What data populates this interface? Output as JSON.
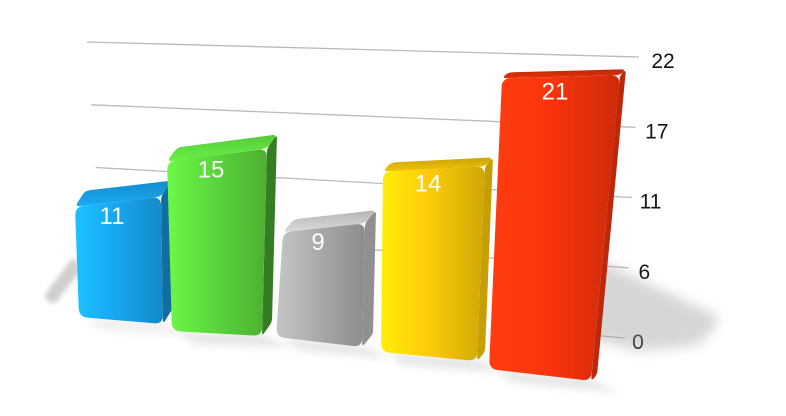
{
  "chart_data": {
    "type": "bar",
    "projection": "3d",
    "title": "",
    "series": [
      {
        "name": "",
        "values": [
          11,
          15,
          9,
          14,
          21
        ],
        "data_labels": [
          "11",
          "15",
          "9",
          "14",
          "21"
        ],
        "bar_colors": [
          "#18A7F2",
          "#5CD73D",
          "#ABABAB",
          "#FECC08",
          "#FA350C"
        ]
      }
    ],
    "value_label_color": "#ffffff",
    "axis": {
      "side": "right",
      "min": 0,
      "max": 22,
      "tick_labels": [
        "0",
        "6",
        "11",
        "17",
        "22"
      ],
      "label_color": "#161616"
    },
    "grid": true,
    "gridline_color": "#b3b3b3",
    "background": "#ffffff",
    "legend": "none",
    "x_axis_labels": []
  }
}
